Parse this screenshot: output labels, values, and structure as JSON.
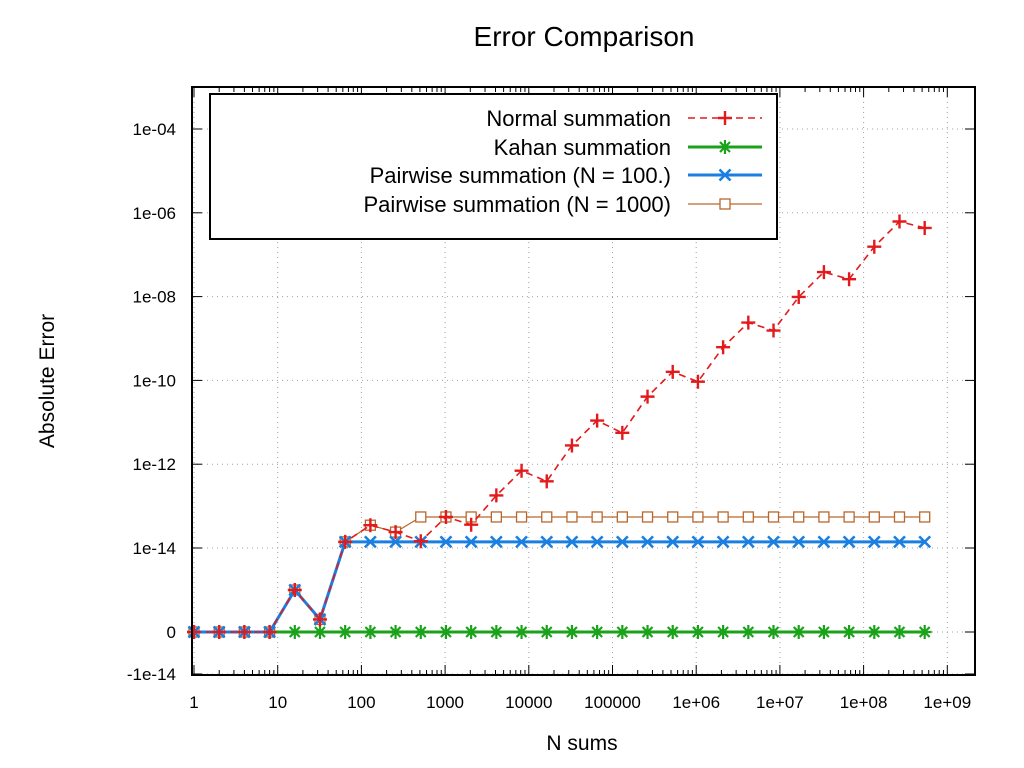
{
  "chart_data": {
    "type": "line",
    "title": "Error Comparison",
    "xlabel": "N sums",
    "ylabel": "Absolute Error",
    "x_scale": "log10",
    "y_scale": "symlog",
    "xlim": [
      1,
      2000000000
    ],
    "x_ticks": [
      {
        "value": 1,
        "label": "1"
      },
      {
        "value": 10,
        "label": "10"
      },
      {
        "value": 100,
        "label": "100"
      },
      {
        "value": 1000,
        "label": "1000"
      },
      {
        "value": 10000,
        "label": "10000"
      },
      {
        "value": 100000,
        "label": "100000"
      },
      {
        "value": 1000000,
        "label": "1e+06"
      },
      {
        "value": 10000000,
        "label": "1e+07"
      },
      {
        "value": 100000000,
        "label": "1e+08"
      },
      {
        "value": 1000000000,
        "label": "1e+09"
      }
    ],
    "y_ticks": [
      {
        "value": 0.0001,
        "label": "1e-04"
      },
      {
        "value": 1e-06,
        "label": "1e-06"
      },
      {
        "value": 1e-08,
        "label": "1e-08"
      },
      {
        "value": 1e-10,
        "label": "1e-10"
      },
      {
        "value": 1e-12,
        "label": "1e-12"
      },
      {
        "value": 1e-14,
        "label": "1e-14"
      },
      {
        "value": 0,
        "label": "0"
      },
      {
        "value": -1e-14,
        "label": "-1e-14"
      }
    ],
    "grid": true,
    "legend_position": "top-left",
    "x": [
      1,
      2,
      4,
      8,
      16,
      32,
      64,
      128,
      256,
      512,
      1024,
      2048,
      4096,
      8192,
      16384,
      32768,
      65536,
      131072,
      262144,
      524288,
      1048576,
      2097152,
      4194304,
      8388608,
      16777216,
      33554432,
      67108864,
      134217728,
      268435456,
      536870912
    ],
    "series": [
      {
        "name": "Normal summation",
        "color": "#e31a1c",
        "marker": "plus",
        "dashed": true,
        "values": [
          0,
          0,
          0,
          0,
          5e-15,
          1.5e-15,
          1.4e-14,
          3.5e-14,
          2.4e-14,
          1.45e-14,
          5.5e-14,
          3.6e-14,
          1.8e-13,
          7e-13,
          3.9e-13,
          2.8e-12,
          1.1e-11,
          5.6e-12,
          4.1e-11,
          1.6e-10,
          9.3e-11,
          6.2e-10,
          2.4e-09,
          1.55e-09,
          9.8e-09,
          3.85e-08,
          2.6e-08,
          1.55e-07,
          6.2e-07,
          4.35e-07
        ]
      },
      {
        "name": "Kahan summation",
        "color": "#1ba21b",
        "marker": "star",
        "dashed": false,
        "values": [
          0,
          0,
          0,
          0,
          0,
          0,
          0,
          0,
          0,
          0,
          0,
          0,
          0,
          0,
          0,
          0,
          0,
          0,
          0,
          0,
          0,
          0,
          0,
          0,
          0,
          0,
          0,
          0,
          0,
          0
        ]
      },
      {
        "name": "Pairwise summation (N = 100.)",
        "color": "#1a7fe0",
        "marker": "cross",
        "dashed": false,
        "values": [
          0,
          0,
          0,
          0,
          5e-15,
          1.5e-15,
          1.4e-14,
          1.4e-14,
          1.4e-14,
          1.4e-14,
          1.4e-14,
          1.4e-14,
          1.4e-14,
          1.4e-14,
          1.4e-14,
          1.4e-14,
          1.4e-14,
          1.4e-14,
          1.4e-14,
          1.4e-14,
          1.4e-14,
          1.4e-14,
          1.4e-14,
          1.4e-14,
          1.4e-14,
          1.4e-14,
          1.4e-14,
          1.4e-14,
          1.4e-14,
          1.4e-14
        ]
      },
      {
        "name": "Pairwise summation (N = 1000)",
        "color": "#b8672c",
        "marker": "square",
        "dashed": false,
        "values": [
          0,
          0,
          0,
          0,
          5e-15,
          1.5e-15,
          1.4e-14,
          3.5e-14,
          2.4e-14,
          5.5e-14,
          5.5e-14,
          5.5e-14,
          5.5e-14,
          5.5e-14,
          5.5e-14,
          5.5e-14,
          5.5e-14,
          5.5e-14,
          5.5e-14,
          5.5e-14,
          5.5e-14,
          5.5e-14,
          5.5e-14,
          5.5e-14,
          5.5e-14,
          5.5e-14,
          5.5e-14,
          5.5e-14,
          5.5e-14,
          5.5e-14
        ]
      }
    ]
  }
}
